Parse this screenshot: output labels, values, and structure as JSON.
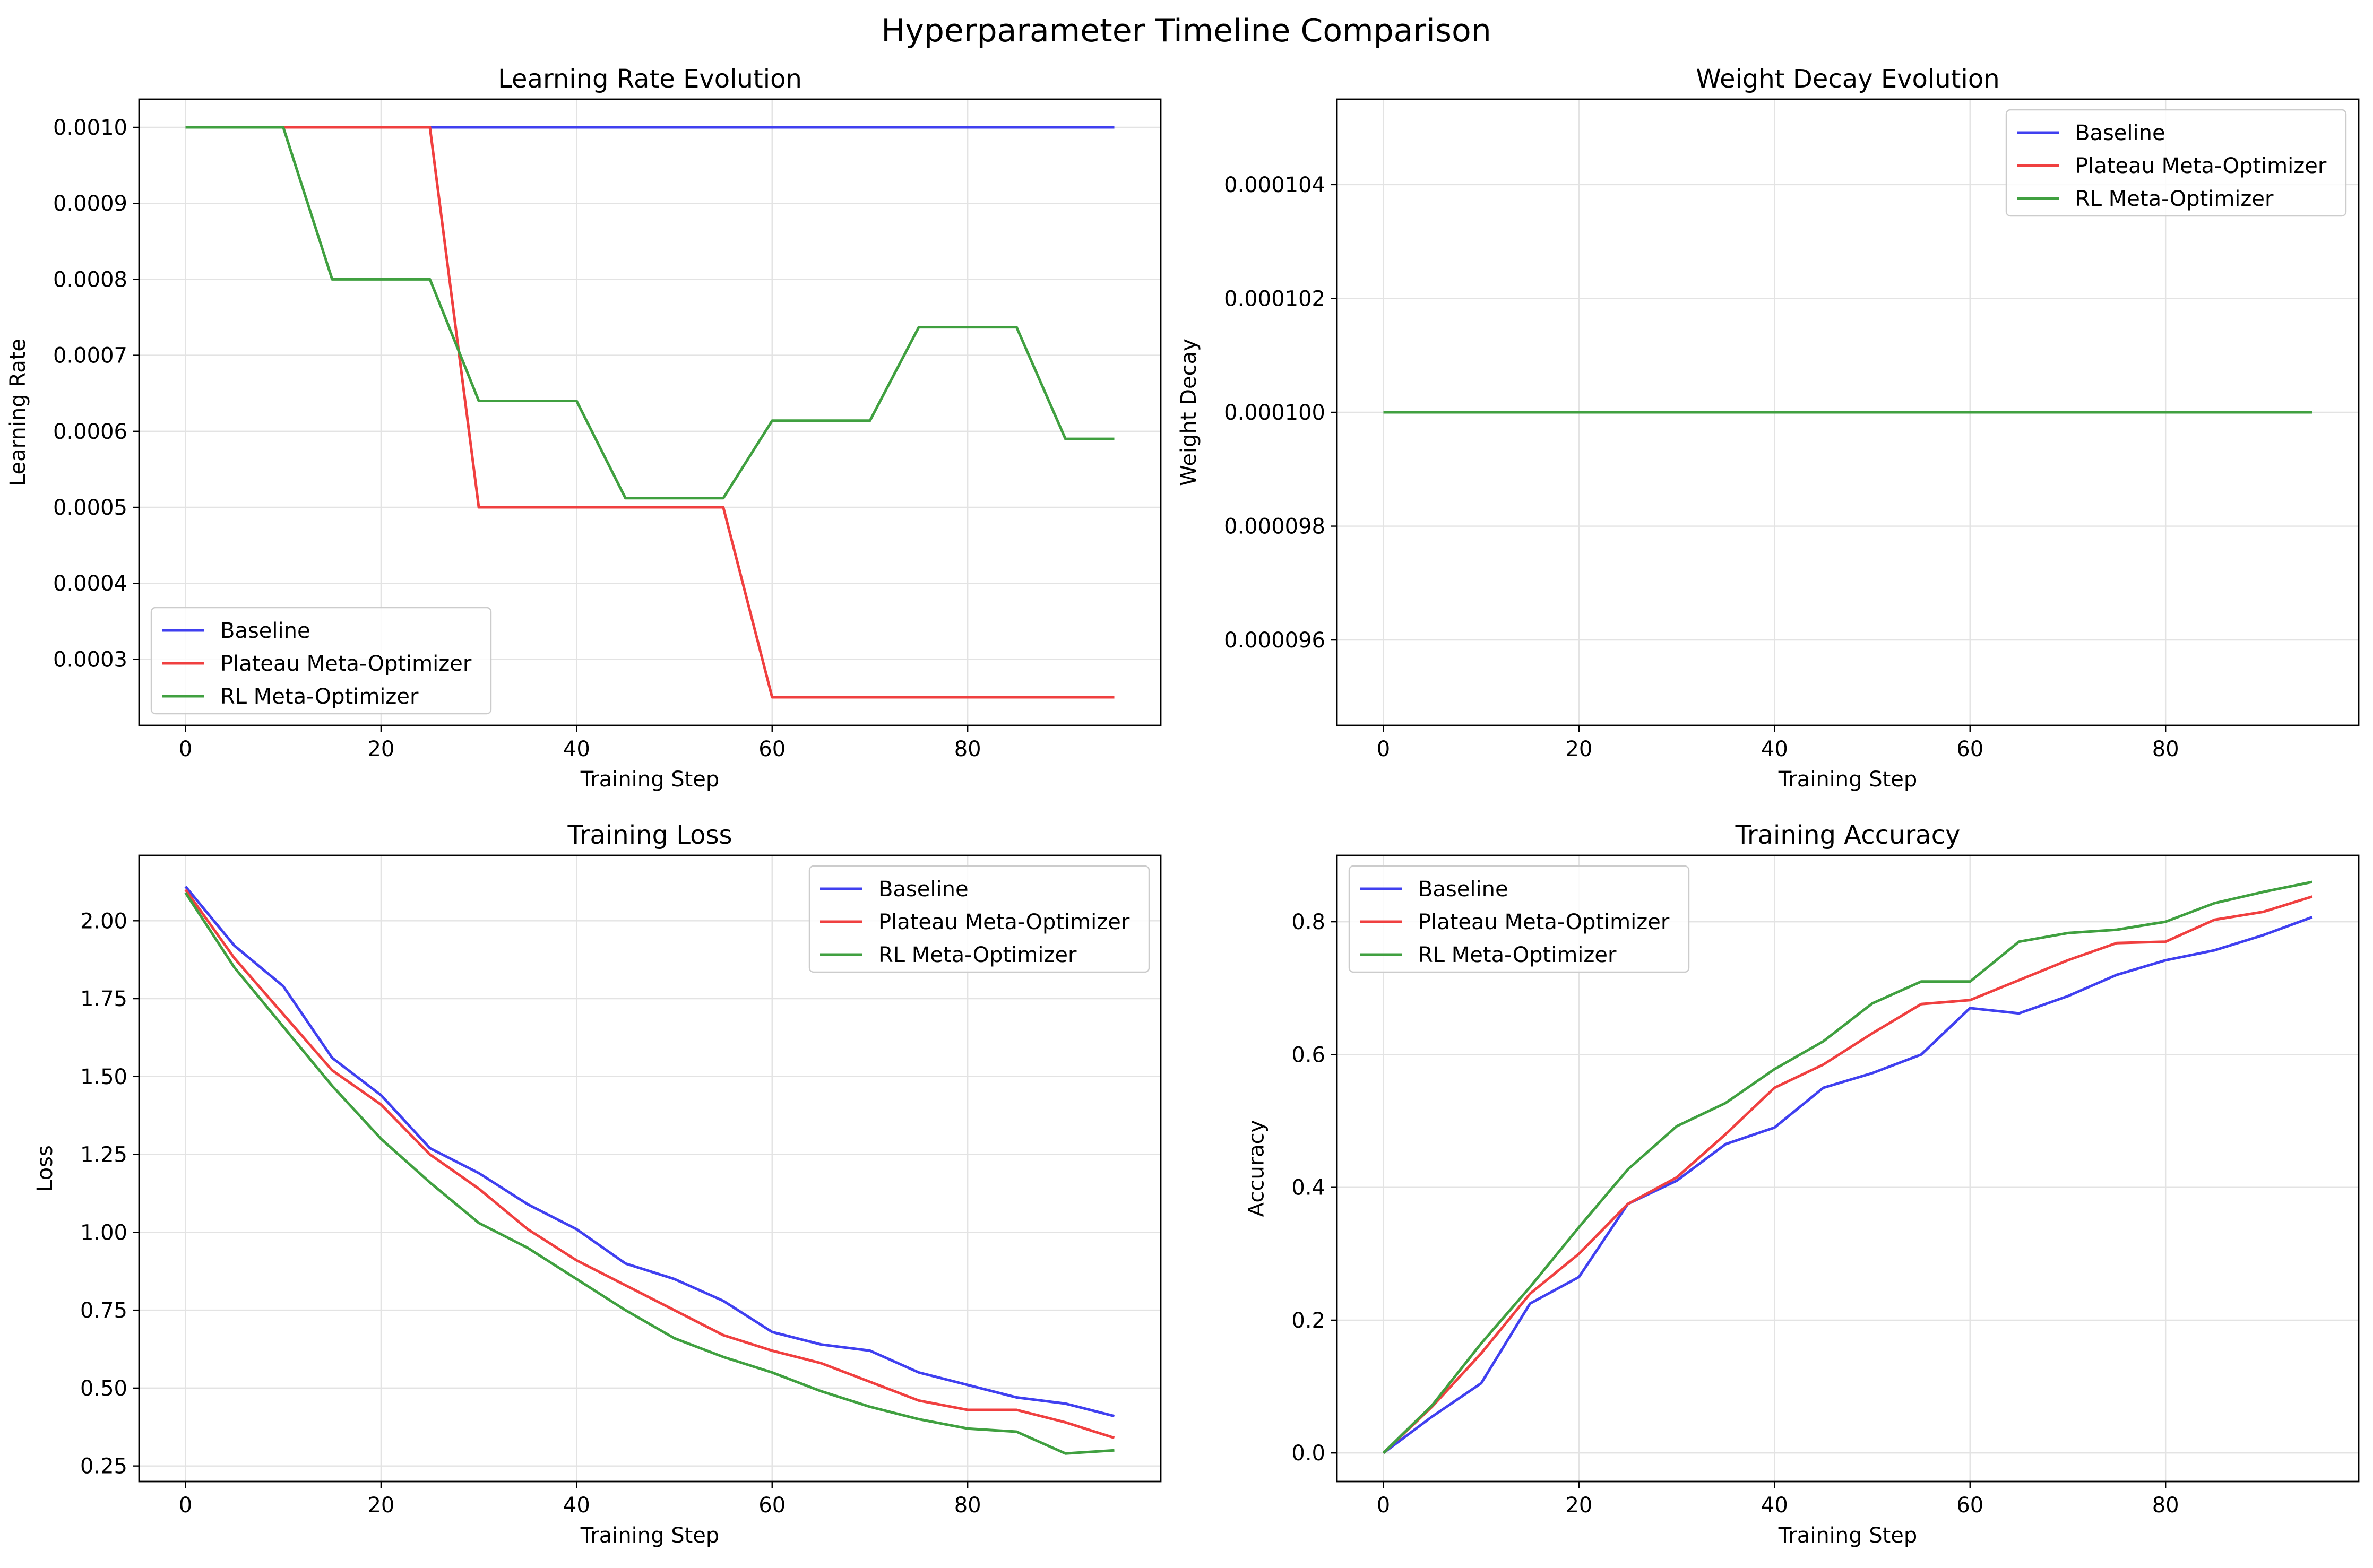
{
  "figure": {
    "suptitle": "Hyperparameter Timeline Comparison"
  },
  "colors": {
    "baseline": "#4040f0",
    "plateau": "#f04040",
    "rl": "#40a040"
  },
  "chart_data": [
    {
      "type": "line",
      "title": "Learning Rate Evolution",
      "xlabel": "Training Step",
      "ylabel": "Learning Rate",
      "xlim": [
        -4.75,
        99.75
      ],
      "ylim": [
        0.000213,
        0.001037
      ],
      "xticks": [
        0,
        20,
        40,
        60,
        80
      ],
      "xtick_labels": [
        "0",
        "20",
        "40",
        "60",
        "80"
      ],
      "yticks": [
        0.0003,
        0.0004,
        0.0005,
        0.0006,
        0.0007,
        0.0008,
        0.0009,
        0.001
      ],
      "ytick_labels": [
        "0.0003",
        "0.0004",
        "0.0005",
        "0.0006",
        "0.0007",
        "0.0008",
        "0.0009",
        "0.0010"
      ],
      "grid": true,
      "legend": "lower left",
      "x": [
        0,
        5,
        10,
        15,
        20,
        25,
        30,
        35,
        40,
        45,
        50,
        55,
        60,
        65,
        70,
        75,
        80,
        85,
        90,
        95
      ],
      "series": [
        {
          "name": "Baseline",
          "color_key": "baseline",
          "values": [
            0.001,
            0.001,
            0.001,
            0.001,
            0.001,
            0.001,
            0.001,
            0.001,
            0.001,
            0.001,
            0.001,
            0.001,
            0.001,
            0.001,
            0.001,
            0.001,
            0.001,
            0.001,
            0.001,
            0.001
          ]
        },
        {
          "name": "Plateau Meta-Optimizer",
          "color_key": "plateau",
          "values": [
            0.001,
            0.001,
            0.001,
            0.001,
            0.001,
            0.001,
            0.0005,
            0.0005,
            0.0005,
            0.0005,
            0.0005,
            0.0005,
            0.00025,
            0.00025,
            0.00025,
            0.00025,
            0.00025,
            0.00025,
            0.00025,
            0.00025
          ]
        },
        {
          "name": "RL Meta-Optimizer",
          "color_key": "rl",
          "values": [
            0.001,
            0.001,
            0.001,
            0.0008,
            0.0008,
            0.0008,
            0.00064,
            0.00064,
            0.00064,
            0.000512,
            0.000512,
            0.000512,
            0.000614,
            0.000614,
            0.000614,
            0.000737,
            0.000737,
            0.000737,
            0.00059,
            0.00059
          ]
        }
      ]
    },
    {
      "type": "line",
      "title": "Weight Decay Evolution",
      "xlabel": "Training Step",
      "ylabel": "Weight Decay",
      "xlim": [
        -4.75,
        99.75
      ],
      "ylim": [
        9.45e-05,
        0.0001055
      ],
      "xticks": [
        0,
        20,
        40,
        60,
        80
      ],
      "xtick_labels": [
        "0",
        "20",
        "40",
        "60",
        "80"
      ],
      "yticks": [
        9.6e-05,
        9.8e-05,
        0.0001,
        0.000102,
        0.000104
      ],
      "ytick_labels": [
        "0.000096",
        "0.000098",
        "0.000100",
        "0.000102",
        "0.000104"
      ],
      "grid": true,
      "legend": "upper right",
      "x": [
        0,
        95
      ],
      "series": [
        {
          "name": "Baseline",
          "color_key": "baseline",
          "values": [
            0.0001,
            0.0001
          ]
        },
        {
          "name": "Plateau Meta-Optimizer",
          "color_key": "plateau",
          "values": [
            0.0001,
            0.0001
          ]
        },
        {
          "name": "RL Meta-Optimizer",
          "color_key": "rl",
          "values": [
            0.0001,
            0.0001
          ]
        }
      ]
    },
    {
      "type": "line",
      "title": "Training Loss",
      "xlabel": "Training Step",
      "ylabel": "Loss",
      "xlim": [
        -4.75,
        99.75
      ],
      "ylim": [
        0.2,
        2.21
      ],
      "xticks": [
        0,
        20,
        40,
        60,
        80
      ],
      "xtick_labels": [
        "0",
        "20",
        "40",
        "60",
        "80"
      ],
      "yticks": [
        0.25,
        0.5,
        0.75,
        1.0,
        1.25,
        1.5,
        1.75,
        2.0
      ],
      "ytick_labels": [
        "0.25",
        "0.50",
        "0.75",
        "1.00",
        "1.25",
        "1.50",
        "1.75",
        "2.00"
      ],
      "grid": true,
      "legend": "upper right",
      "x": [
        0,
        5,
        10,
        15,
        20,
        25,
        30,
        35,
        40,
        45,
        50,
        55,
        60,
        65,
        70,
        75,
        80,
        85,
        90,
        95
      ],
      "series": [
        {
          "name": "Baseline",
          "color_key": "baseline",
          "values": [
            2.11,
            1.92,
            1.79,
            1.56,
            1.44,
            1.27,
            1.19,
            1.09,
            1.01,
            0.9,
            0.85,
            0.78,
            0.68,
            0.64,
            0.62,
            0.55,
            0.51,
            0.47,
            0.45,
            0.41
          ]
        },
        {
          "name": "Plateau Meta-Optimizer",
          "color_key": "plateau",
          "values": [
            2.1,
            1.88,
            1.7,
            1.52,
            1.41,
            1.25,
            1.14,
            1.01,
            0.91,
            0.83,
            0.75,
            0.67,
            0.62,
            0.58,
            0.52,
            0.46,
            0.43,
            0.43,
            0.39,
            0.34
          ]
        },
        {
          "name": "RL Meta-Optimizer",
          "color_key": "rl",
          "values": [
            2.09,
            1.85,
            1.66,
            1.47,
            1.3,
            1.16,
            1.03,
            0.95,
            0.85,
            0.75,
            0.66,
            0.6,
            0.55,
            0.49,
            0.44,
            0.4,
            0.37,
            0.36,
            0.29,
            0.3
          ]
        }
      ]
    },
    {
      "type": "line",
      "title": "Training Accuracy",
      "xlabel": "Training Step",
      "ylabel": "Accuracy",
      "xlim": [
        -4.75,
        99.75
      ],
      "ylim": [
        -0.043,
        0.9
      ],
      "xticks": [
        0,
        20,
        40,
        60,
        80
      ],
      "xtick_labels": [
        "0",
        "20",
        "40",
        "60",
        "80"
      ],
      "yticks": [
        0.0,
        0.2,
        0.4,
        0.6,
        0.8
      ],
      "ytick_labels": [
        "0.0",
        "0.2",
        "0.4",
        "0.6",
        "0.8"
      ],
      "grid": true,
      "legend": "upper left",
      "x": [
        0,
        5,
        10,
        15,
        20,
        25,
        30,
        35,
        40,
        45,
        50,
        55,
        60,
        65,
        70,
        75,
        80,
        85,
        90,
        95
      ],
      "series": [
        {
          "name": "Baseline",
          "color_key": "baseline",
          "values": [
            0.0,
            0.055,
            0.105,
            0.225,
            0.265,
            0.375,
            0.41,
            0.465,
            0.49,
            0.55,
            0.572,
            0.6,
            0.67,
            0.662,
            0.688,
            0.72,
            0.742,
            0.757,
            0.78,
            0.807
          ]
        },
        {
          "name": "Plateau Meta-Optimizer",
          "color_key": "plateau",
          "values": [
            0.0,
            0.07,
            0.15,
            0.24,
            0.3,
            0.375,
            0.415,
            0.48,
            0.55,
            0.585,
            0.632,
            0.676,
            0.682,
            0.712,
            0.742,
            0.768,
            0.77,
            0.803,
            0.815,
            0.838
          ]
        },
        {
          "name": "RL Meta-Optimizer",
          "color_key": "rl",
          "values": [
            0.0,
            0.072,
            0.165,
            0.25,
            0.34,
            0.427,
            0.492,
            0.527,
            0.578,
            0.62,
            0.677,
            0.71,
            0.71,
            0.77,
            0.783,
            0.788,
            0.8,
            0.828,
            0.845,
            0.86
          ]
        }
      ]
    }
  ]
}
